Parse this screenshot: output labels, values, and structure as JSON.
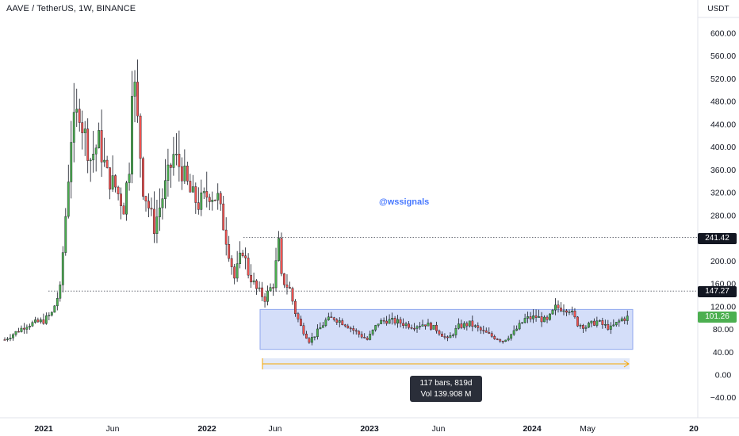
{
  "header": {
    "title": "AAVE / TetherUS, 1W, BINANCE",
    "currency": "USDT"
  },
  "watermark": "@wssignals",
  "tooltip": {
    "line1": "117 bars, 819d",
    "line2": "Vol 139.908 M"
  },
  "price_tags": {
    "level_high": "241.42",
    "level_low": "147.27",
    "last_price": "101.26"
  },
  "colors": {
    "up": "#26a69a",
    "up_fill": "#4caf50",
    "down": "#ef5350",
    "range_box": "#c6d3f7",
    "measure_arrow": "#f7a600"
  },
  "chart_data": {
    "type": "candlestick",
    "title": "AAVE / TetherUS, 1W, BINANCE",
    "y_axis": {
      "unit": "USDT",
      "range": [
        -65,
        650
      ],
      "ticks": [
        "600.00",
        "560.00",
        "520.00",
        "480.00",
        "440.00",
        "400.00",
        "360.00",
        "320.00",
        "280.00",
        "240.00",
        "200.00",
        "160.00",
        "120.00",
        "80.00",
        "40.00",
        "0.00",
        "−40.00"
      ]
    },
    "x_axis": {
      "ticks": [
        "2021",
        "Jun",
        "2022",
        "Jun",
        "2023",
        "Jun",
        "2024",
        "May",
        "20"
      ],
      "bold_ticks": [
        "2021",
        "2022",
        "2023",
        "2024",
        "20"
      ]
    },
    "horizontal_levels": [
      241.42,
      147.27
    ],
    "range_box": {
      "low": 45,
      "high": 115
    },
    "last_price": 101.26,
    "measure": {
      "bars": 117,
      "days": 819,
      "volume": "139.908 M"
    }
  }
}
